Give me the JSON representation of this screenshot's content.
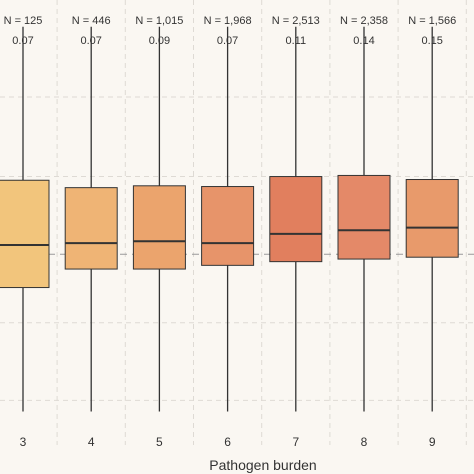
{
  "chart_data": {
    "type": "box",
    "title": "",
    "xlabel": "Pathogen burden",
    "ylabel": "",
    "x_ticks": [
      "3",
      "4",
      "5",
      "6",
      "7",
      "8",
      "9"
    ],
    "ylim": [
      0,
      1
    ],
    "reference_line": 0.475,
    "grid": true,
    "grid_style": "dashed",
    "colors": {
      "background": "#faf7f2",
      "grid": "#dedad4",
      "reference_line": "#999999",
      "whisker": "#333333",
      "box_stroke": "#333333"
    },
    "groups": [
      {
        "category": "3",
        "n_label": "N = 125",
        "value_label": "0.07",
        "whisker_low": 0.05,
        "q1": 0.385,
        "median": 0.5,
        "q3": 0.675,
        "whisker_high": 1.09,
        "color": "#f2c57c"
      },
      {
        "category": "4",
        "n_label": "N = 446",
        "value_label": "0.07",
        "whisker_low": 0.05,
        "q1": 0.435,
        "median": 0.505,
        "q3": 0.655,
        "whisker_high": 1.09,
        "color": "#efb475"
      },
      {
        "category": "5",
        "n_label": "N = 1,015",
        "value_label": "0.09",
        "whisker_low": 0.05,
        "q1": 0.435,
        "median": 0.51,
        "q3": 0.66,
        "whisker_high": 1.09,
        "color": "#eba46d"
      },
      {
        "category": "6",
        "n_label": "N = 1,968",
        "value_label": "0.07",
        "whisker_low": 0.05,
        "q1": 0.445,
        "median": 0.505,
        "q3": 0.658,
        "whisker_high": 1.09,
        "color": "#e7946a"
      },
      {
        "category": "7",
        "n_label": "N = 2,513",
        "value_label": "0.11",
        "whisker_low": 0.05,
        "q1": 0.455,
        "median": 0.53,
        "q3": 0.685,
        "whisker_high": 1.09,
        "color": "#e17f5e"
      },
      {
        "category": "8",
        "n_label": "N = 2,358",
        "value_label": "0.14",
        "whisker_low": 0.05,
        "q1": 0.462,
        "median": 0.54,
        "q3": 0.688,
        "whisker_high": 1.09,
        "color": "#e48968"
      },
      {
        "category": "9",
        "n_label": "N = 1,566",
        "value_label": "0.15",
        "whisker_low": 0.05,
        "q1": 0.467,
        "median": 0.547,
        "q3": 0.677,
        "whisker_high": 1.09,
        "color": "#e89a6b"
      }
    ]
  }
}
